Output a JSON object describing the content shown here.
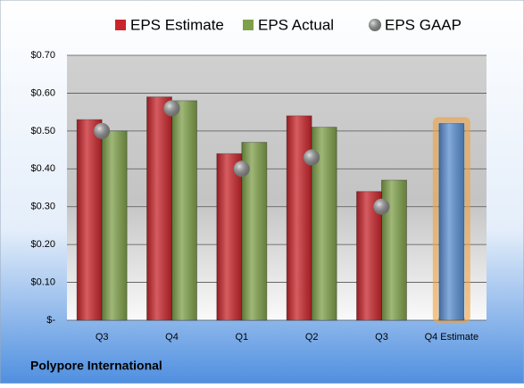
{
  "chart_data": {
    "type": "bar",
    "categories": [
      "Q3",
      "Q4",
      "Q1",
      "Q2",
      "Q3",
      "Q4 Estimate"
    ],
    "series": [
      {
        "name": "EPS Estimate",
        "color": "#c8262c",
        "highlight_color": "#5b8fd0",
        "values": [
          0.53,
          0.59,
          0.44,
          0.54,
          0.34,
          0.52
        ]
      },
      {
        "name": "EPS Actual",
        "color": "#7fa04a",
        "values": [
          0.5,
          0.58,
          0.47,
          0.51,
          0.37,
          null
        ]
      },
      {
        "name": "EPS GAAP",
        "color": "#9a9a9a",
        "values": [
          0.5,
          0.56,
          0.4,
          0.43,
          0.3,
          null
        ]
      }
    ],
    "ylim": [
      0,
      0.7
    ],
    "yticks": [
      {
        "value": 0,
        "label": "$-"
      },
      {
        "value": 0.1,
        "label": "$0.10"
      },
      {
        "value": 0.2,
        "label": "$0.20"
      },
      {
        "value": 0.3,
        "label": "$0.30"
      },
      {
        "value": 0.4,
        "label": "$0.40"
      },
      {
        "value": 0.5,
        "label": "$0.50"
      },
      {
        "value": 0.6,
        "label": "$0.60"
      },
      {
        "value": 0.7,
        "label": "$0.70"
      }
    ],
    "grid": true,
    "footer": "Polypore International"
  }
}
